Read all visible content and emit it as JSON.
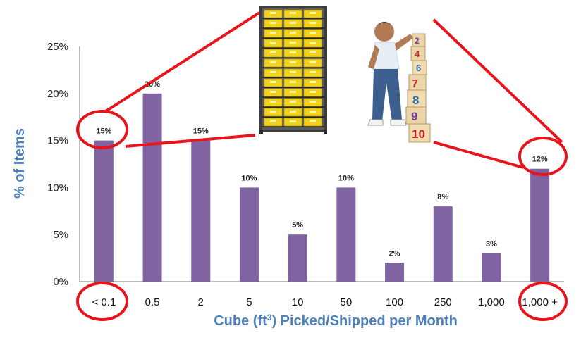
{
  "chart_data": {
    "type": "bar",
    "categories": [
      "< 0.1",
      "0.5",
      "2",
      "5",
      "10",
      "50",
      "100",
      "250",
      "1,000",
      "1,000 +"
    ],
    "values": [
      15,
      20,
      15,
      10,
      5,
      10,
      2,
      8,
      3,
      12
    ],
    "data_labels": [
      "15%",
      "20%",
      "15%",
      "10%",
      "5%",
      "10%",
      "2%",
      "8%",
      "3%",
      "12%"
    ],
    "y_ticks": [
      "0%",
      "5%",
      "10%",
      "15%",
      "20%",
      "25%"
    ],
    "ylim": [
      0,
      25
    ],
    "xlabel_main": "Cube (ft",
    "xlabel_sup": "3",
    "xlabel_rest": ") Picked/Shipped per Month",
    "ylabel": "% of Items",
    "grid": false,
    "legend": "none",
    "bar_color": "#8064a2",
    "axis_label_color": "#4f81bd",
    "highlight_color": "#e8141b",
    "highlighted_categories": [
      "< 0.1",
      "1,000 +"
    ]
  },
  "images": {
    "left": "storage-bin-shelving-icon",
    "right": "child-stacking-number-blocks-icon"
  }
}
